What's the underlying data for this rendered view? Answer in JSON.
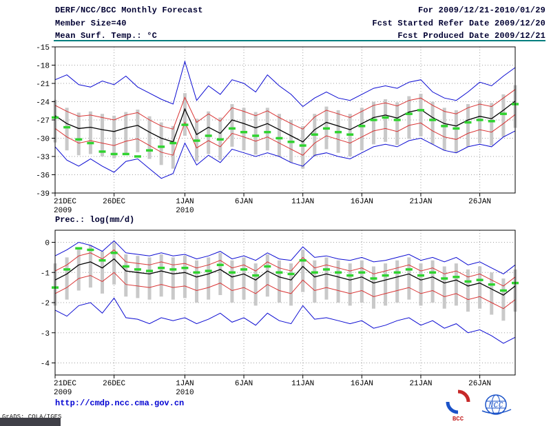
{
  "header": {
    "title": "DERF/NCC/BCC Monthly Forecast",
    "member_size": "Member Size=40",
    "temp_label": "Mean Surf. Temp.: °C",
    "for_range": "For 2009/12/21-2010/01/29",
    "refer_date": "Fcst Started Refer Date 2009/12/20",
    "produced_date": "Fcst Produced Date 2009/12/21"
  },
  "footer": {
    "url": "http://cmdp.ncc.cma.gov.cn",
    "grads_credit": "GrADS: COLA/IGES",
    "bcc_logo_text": "BCC",
    "ncc_logo_text": "NCC"
  },
  "colors": {
    "envelope_blue": "#0a0ad2",
    "quartile_red": "#d93434",
    "mean_black": "#000000",
    "obs_green": "#2fd32f",
    "spread_gray": "#c9c9c9",
    "rule_teal": "#007d7d",
    "url_blue": "#0000d2"
  },
  "chart_data": [
    {
      "type": "line",
      "title": "Mean Surf. Temp.: °C",
      "ylabel": "°C",
      "ylim": [
        -39,
        -15
      ],
      "yticks": [
        -15,
        -18,
        -21,
        -24,
        -27,
        -30,
        -33,
        -36,
        -39
      ],
      "grid": true,
      "legend_position": "none",
      "n": 40,
      "x_ticks": {
        "idx": [
          0,
          5,
          11,
          16,
          21,
          26,
          31,
          36
        ],
        "labels": [
          "21DEC",
          "26DEC",
          "1JAN",
          "6JAN",
          "11JAN",
          "16JAN",
          "21JAN",
          "26JAN"
        ],
        "years": [
          {
            "tick": 0,
            "label": "2009"
          },
          {
            "tick": 2,
            "label": "2010"
          }
        ]
      },
      "series": [
        {
          "name": "ensemble-max",
          "color": "#0a0ad2",
          "width": 1,
          "values": [
            -20.4,
            -19.6,
            -21.2,
            -21.6,
            -20.6,
            -21.2,
            -19.8,
            -21.6,
            -22.6,
            -23.6,
            -24.4,
            -17.4,
            -23.8,
            -21.4,
            -22.8,
            -20.4,
            -21.0,
            -22.4,
            -19.6,
            -21.4,
            -22.8,
            -24.8,
            -23.4,
            -22.4,
            -23.4,
            -23.8,
            -22.8,
            -21.8,
            -21.4,
            -21.8,
            -20.8,
            -20.4,
            -22.4,
            -23.4,
            -23.8,
            -22.4,
            -20.8,
            -21.4,
            -19.8,
            -18.4
          ]
        },
        {
          "name": "upper-quartile",
          "color": "#d93434",
          "width": 1,
          "values": [
            -24.6,
            -25.6,
            -26.4,
            -26.2,
            -26.6,
            -27.0,
            -26.2,
            -25.8,
            -27.0,
            -28.0,
            -28.5,
            -23.3,
            -27.4,
            -26.0,
            -27.2,
            -25.0,
            -25.6,
            -26.3,
            -25.5,
            -26.6,
            -27.6,
            -28.5,
            -26.5,
            -25.4,
            -26.0,
            -26.6,
            -25.6,
            -24.6,
            -24.2,
            -24.7,
            -23.8,
            -23.4,
            -24.6,
            -25.6,
            -26.0,
            -25.0,
            -24.4,
            -24.8,
            -23.4,
            -22.0
          ]
        },
        {
          "name": "ensemble-mean",
          "color": "#000000",
          "width": 1.3,
          "values": [
            -26.3,
            -27.6,
            -28.4,
            -28.2,
            -28.6,
            -28.9,
            -28.3,
            -27.9,
            -29.0,
            -30.0,
            -30.6,
            -25.2,
            -29.4,
            -28.2,
            -29.2,
            -27.0,
            -27.6,
            -28.3,
            -27.6,
            -28.6,
            -29.6,
            -30.6,
            -28.6,
            -27.4,
            -28.0,
            -28.6,
            -27.6,
            -26.6,
            -26.2,
            -26.7,
            -25.7,
            -25.3,
            -26.6,
            -27.6,
            -28.0,
            -27.0,
            -26.4,
            -26.8,
            -25.4,
            -23.9
          ]
        },
        {
          "name": "lower-quartile",
          "color": "#d93434",
          "width": 1,
          "values": [
            -28.4,
            -29.8,
            -30.8,
            -30.4,
            -30.8,
            -31.2,
            -30.5,
            -30.1,
            -31.2,
            -32.3,
            -32.8,
            -27.4,
            -31.6,
            -30.4,
            -31.4,
            -29.2,
            -29.8,
            -30.5,
            -29.8,
            -30.8,
            -31.8,
            -32.8,
            -30.8,
            -29.6,
            -30.2,
            -30.8,
            -29.8,
            -28.8,
            -28.4,
            -28.9,
            -27.9,
            -27.5,
            -28.8,
            -29.8,
            -30.2,
            -29.2,
            -28.6,
            -29.0,
            -27.6,
            -26.1
          ]
        },
        {
          "name": "ensemble-min",
          "color": "#0a0ad2",
          "width": 1,
          "values": [
            -31.4,
            -33.6,
            -34.6,
            -33.4,
            -34.6,
            -35.6,
            -33.8,
            -33.4,
            -35.0,
            -36.6,
            -35.8,
            -30.8,
            -34.4,
            -32.8,
            -34.0,
            -31.8,
            -32.4,
            -33.0,
            -32.4,
            -33.0,
            -34.0,
            -34.6,
            -32.8,
            -32.4,
            -33.0,
            -33.4,
            -32.4,
            -31.4,
            -31.0,
            -31.4,
            -30.4,
            -30.0,
            -31.0,
            -32.0,
            -32.4,
            -31.4,
            -31.0,
            -31.4,
            -29.8,
            -28.8
          ]
        }
      ],
      "dash_series": {
        "name": "obs-climatology",
        "color": "#2fd32f",
        "values": [
          -26.6,
          -28.2,
          -30.2,
          -30.8,
          -32.2,
          -32.6,
          -32.6,
          -33.0,
          -32.0,
          -31.4,
          -30.8,
          -27.8,
          -30.4,
          -29.6,
          -30.2,
          -28.4,
          -29.0,
          -29.6,
          -29.0,
          -30.0,
          -30.6,
          -31.2,
          -29.4,
          -28.4,
          -29.0,
          -29.4,
          -28.0,
          -27.0,
          -26.6,
          -27.0,
          -26.0,
          -25.4,
          -27.0,
          -28.0,
          -28.4,
          -27.4,
          -27.0,
          -27.2,
          -26.0,
          -24.4
        ]
      },
      "bars": {
        "name": "member-spread",
        "color": "#c9c9c9",
        "high": [
          -23.7,
          -25.0,
          -25.8,
          -25.6,
          -26.0,
          -26.3,
          -25.7,
          -25.3,
          -26.4,
          -27.4,
          -28.0,
          -22.6,
          -26.8,
          -25.6,
          -26.6,
          -24.4,
          -25.0,
          -25.7,
          -25.0,
          -26.0,
          -27.0,
          -28.0,
          -26.0,
          -24.8,
          -25.4,
          -26.0,
          -25.0,
          -24.0,
          -23.6,
          -24.1,
          -23.1,
          -22.7,
          -24.0,
          -25.0,
          -25.4,
          -24.4,
          -23.8,
          -24.2,
          -22.8,
          -21.3
        ],
        "low": [
          -30.7,
          -32.0,
          -32.8,
          -32.6,
          -33.0,
          -33.3,
          -32.7,
          -32.3,
          -33.4,
          -34.4,
          -35.0,
          -29.6,
          -33.8,
          -32.6,
          -33.6,
          -31.4,
          -32.0,
          -32.7,
          -32.0,
          -33.0,
          -34.0,
          -35.0,
          -33.0,
          -31.8,
          -32.4,
          -33.0,
          -32.0,
          -31.0,
          -30.6,
          -31.1,
          -30.1,
          -29.7,
          -31.0,
          -32.0,
          -32.4,
          -31.4,
          -30.8,
          -31.2,
          -29.8,
          -28.3
        ]
      }
    },
    {
      "type": "line",
      "title": "Prec.: log(mm/d)",
      "ylabel": "log(mm/d)",
      "ylim": [
        -4.4,
        0.4
      ],
      "yticks": [
        0,
        -1,
        -2,
        -3,
        -4
      ],
      "grid": true,
      "legend_position": "none",
      "n": 40,
      "x_ticks": {
        "idx": [
          0,
          5,
          11,
          16,
          21,
          26,
          31,
          36
        ],
        "labels": [
          "21DEC",
          "26DEC",
          "1JAN",
          "6JAN",
          "11JAN",
          "16JAN",
          "21JAN",
          "26JAN"
        ],
        "years": [
          {
            "tick": 0,
            "label": "2009"
          },
          {
            "tick": 2,
            "label": "2010"
          }
        ]
      },
      "series": [
        {
          "name": "ensemble-max",
          "color": "#0a0ad2",
          "width": 1,
          "values": [
            -0.45,
            -0.25,
            0,
            -0.1,
            -0.3,
            0.05,
            -0.35,
            -0.4,
            -0.45,
            -0.35,
            -0.45,
            -0.4,
            -0.55,
            -0.45,
            -0.3,
            -0.55,
            -0.45,
            -0.6,
            -0.35,
            -0.55,
            -0.6,
            -0.15,
            -0.5,
            -0.45,
            -0.55,
            -0.6,
            -0.5,
            -0.65,
            -0.6,
            -0.5,
            -0.4,
            -0.6,
            -0.5,
            -0.65,
            -0.5,
            -0.75,
            -0.65,
            -0.85,
            -1.05,
            -0.75
          ]
        },
        {
          "name": "upper-quartile",
          "color": "#d93434",
          "width": 1,
          "values": [
            -0.95,
            -0.75,
            -0.45,
            -0.35,
            -0.55,
            -0.25,
            -0.65,
            -0.7,
            -0.75,
            -0.65,
            -0.75,
            -0.7,
            -0.85,
            -0.75,
            -0.6,
            -0.85,
            -0.75,
            -0.95,
            -0.65,
            -0.85,
            -0.95,
            -0.5,
            -0.85,
            -0.75,
            -0.85,
            -0.95,
            -0.85,
            -1.05,
            -0.95,
            -0.85,
            -0.75,
            -0.95,
            -0.85,
            -1.05,
            -0.95,
            -1.15,
            -1.05,
            -1.25,
            -1.45,
            -1.15
          ]
        },
        {
          "name": "ensemble-mean",
          "color": "#000000",
          "width": 1.3,
          "values": [
            -1.25,
            -1.05,
            -0.75,
            -0.65,
            -0.85,
            -0.55,
            -0.95,
            -1.0,
            -1.05,
            -0.95,
            -1.05,
            -1.0,
            -1.15,
            -1.05,
            -0.9,
            -1.15,
            -1.05,
            -1.25,
            -0.95,
            -1.15,
            -1.25,
            -0.8,
            -1.15,
            -1.05,
            -1.15,
            -1.25,
            -1.15,
            -1.35,
            -1.25,
            -1.15,
            -1.05,
            -1.25,
            -1.15,
            -1.35,
            -1.25,
            -1.45,
            -1.35,
            -1.55,
            -1.75,
            -1.45
          ]
        },
        {
          "name": "lower-quartile",
          "color": "#d93434",
          "width": 1,
          "values": [
            -1.7,
            -1.5,
            -1.2,
            -1.1,
            -1.3,
            -1.0,
            -1.4,
            -1.45,
            -1.5,
            -1.4,
            -1.5,
            -1.45,
            -1.6,
            -1.5,
            -1.35,
            -1.6,
            -1.5,
            -1.7,
            -1.4,
            -1.6,
            -1.7,
            -1.25,
            -1.6,
            -1.5,
            -1.6,
            -1.7,
            -1.6,
            -1.8,
            -1.7,
            -1.6,
            -1.5,
            -1.7,
            -1.6,
            -1.8,
            -1.7,
            -1.9,
            -1.8,
            -2.0,
            -2.2,
            -1.9
          ]
        },
        {
          "name": "ensemble-min",
          "color": "#0a0ad2",
          "width": 1,
          "values": [
            -2.25,
            -2.45,
            -2.1,
            -2.0,
            -2.35,
            -1.85,
            -2.5,
            -2.55,
            -2.7,
            -2.5,
            -2.6,
            -2.5,
            -2.7,
            -2.55,
            -2.35,
            -2.65,
            -2.5,
            -2.75,
            -2.35,
            -2.6,
            -2.7,
            -2.1,
            -2.55,
            -2.5,
            -2.6,
            -2.7,
            -2.6,
            -2.85,
            -2.75,
            -2.6,
            -2.5,
            -2.75,
            -2.6,
            -2.85,
            -2.7,
            -3.0,
            -2.9,
            -3.1,
            -3.35,
            -3.15
          ]
        }
      ],
      "dash_series": {
        "name": "obs-climatology",
        "color": "#2fd32f",
        "values": [
          -1.5,
          -0.9,
          -0.2,
          -0.25,
          -0.6,
          -0.35,
          -0.8,
          -0.9,
          -0.95,
          -0.85,
          -0.9,
          -0.85,
          -1.0,
          -0.95,
          -0.75,
          -1.0,
          -0.9,
          -1.1,
          -0.8,
          -1.0,
          -1.05,
          -0.6,
          -1.0,
          -0.9,
          -1.0,
          -1.1,
          -1.0,
          -1.2,
          -1.1,
          -1.0,
          -0.9,
          -1.1,
          -1.0,
          -1.2,
          -1.15,
          -1.3,
          -1.25,
          -1.4,
          -1.6,
          -1.35
        ]
      },
      "bars": {
        "name": "member-spread",
        "color": "#c9c9c9",
        "high": [
          -0.7,
          -0.5,
          -0.2,
          -0.1,
          -0.3,
          0,
          -0.4,
          -0.45,
          -0.5,
          -0.4,
          -0.5,
          -0.45,
          -0.6,
          -0.5,
          -0.35,
          -0.6,
          -0.5,
          -0.7,
          -0.4,
          -0.6,
          -0.7,
          -0.25,
          -0.6,
          -0.5,
          -0.6,
          -0.7,
          -0.6,
          -0.8,
          -0.7,
          -0.6,
          -0.5,
          -0.7,
          -0.6,
          -0.8,
          -0.7,
          -0.9,
          -0.8,
          -1.0,
          -1.2,
          -0.9
        ],
        "low": [
          -2.1,
          -1.9,
          -1.6,
          -1.5,
          -1.7,
          -1.4,
          -1.8,
          -1.85,
          -1.9,
          -1.8,
          -1.9,
          -1.85,
          -2.0,
          -1.9,
          -1.75,
          -2.0,
          -1.9,
          -2.1,
          -1.8,
          -2.0,
          -2.1,
          -1.65,
          -2.0,
          -1.9,
          -2.0,
          -2.1,
          -2.0,
          -2.2,
          -2.1,
          -2.0,
          -1.9,
          -2.1,
          -2.0,
          -2.2,
          -2.1,
          -2.3,
          -2.2,
          -2.4,
          -2.6,
          -2.3
        ]
      }
    }
  ]
}
